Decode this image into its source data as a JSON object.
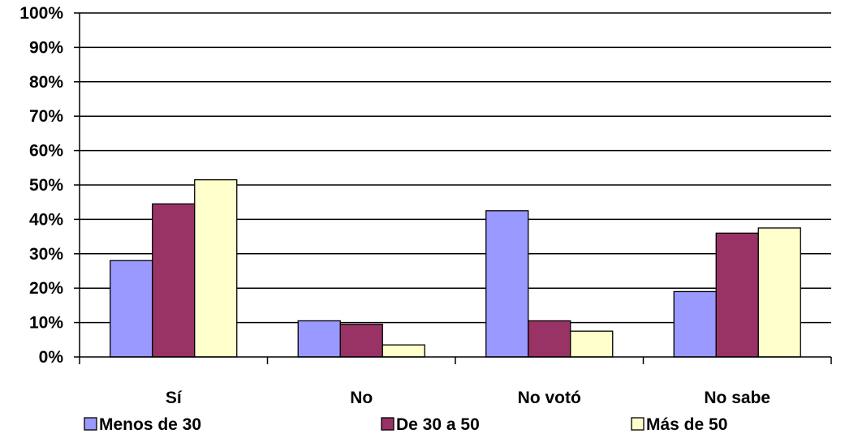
{
  "chart_data": {
    "type": "bar",
    "categories": [
      "Sí",
      "No",
      "No votó",
      "No sabe"
    ],
    "series": [
      {
        "name": "Menos de 30",
        "values": [
          28,
          10.5,
          42.5,
          19
        ],
        "color": "#9999ff"
      },
      {
        "name": "De 30 a 50",
        "values": [
          44.5,
          9.5,
          10.5,
          36
        ],
        "color": "#993366"
      },
      {
        "name": "Más de 50",
        "values": [
          51.5,
          3.5,
          7.5,
          37.5
        ],
        "color": "#ffffcc"
      }
    ],
    "ylim": [
      0,
      100
    ],
    "yticks": [
      "0%",
      "10%",
      "20%",
      "30%",
      "40%",
      "50%",
      "60%",
      "70%",
      "80%",
      "90%",
      "100%"
    ],
    "grid": true,
    "legend_position": "bottom"
  }
}
